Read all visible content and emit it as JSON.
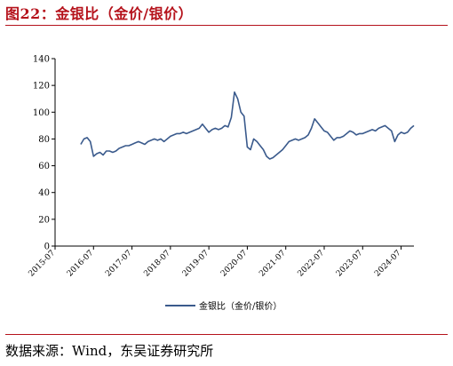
{
  "figure": {
    "title": "图22：金银比（金价/银价）",
    "source": "数据来源：Wind，东吴证券研究所"
  },
  "chart_data": {
    "type": "line",
    "title": "",
    "xlabel": "",
    "ylabel": "",
    "ylim": [
      0,
      140
    ],
    "yticks": [
      0,
      20,
      40,
      60,
      80,
      100,
      120,
      140
    ],
    "x_range": [
      "2015-07",
      "2024-11"
    ],
    "xticks": [
      "2015-07",
      "2016-07",
      "2017-07",
      "2018-07",
      "2019-07",
      "2020-07",
      "2021-07",
      "2022-07",
      "2023-07",
      "2024-07"
    ],
    "grid": false,
    "legend_position": "bottom-center",
    "series": [
      {
        "name": "金银比（金价/银价）",
        "color": "#3a5a8c",
        "x": [
          "2016-03",
          "2016-04",
          "2016-05",
          "2016-06",
          "2016-07",
          "2016-08",
          "2016-09",
          "2016-10",
          "2016-11",
          "2016-12",
          "2017-01",
          "2017-02",
          "2017-03",
          "2017-04",
          "2017-05",
          "2017-06",
          "2017-07",
          "2017-08",
          "2017-09",
          "2017-10",
          "2017-11",
          "2017-12",
          "2018-01",
          "2018-02",
          "2018-03",
          "2018-04",
          "2018-05",
          "2018-06",
          "2018-07",
          "2018-08",
          "2018-09",
          "2018-10",
          "2018-11",
          "2018-12",
          "2019-01",
          "2019-02",
          "2019-03",
          "2019-04",
          "2019-05",
          "2019-06",
          "2019-07",
          "2019-08",
          "2019-09",
          "2019-10",
          "2019-11",
          "2019-12",
          "2020-01",
          "2020-02",
          "2020-03",
          "2020-04",
          "2020-05",
          "2020-06",
          "2020-07",
          "2020-08",
          "2020-09",
          "2020-10",
          "2020-11",
          "2020-12",
          "2021-01",
          "2021-02",
          "2021-03",
          "2021-04",
          "2021-05",
          "2021-06",
          "2021-07",
          "2021-08",
          "2021-09",
          "2021-10",
          "2021-11",
          "2021-12",
          "2022-01",
          "2022-02",
          "2022-03",
          "2022-04",
          "2022-05",
          "2022-06",
          "2022-07",
          "2022-08",
          "2022-09",
          "2022-10",
          "2022-11",
          "2022-12",
          "2023-01",
          "2023-02",
          "2023-03",
          "2023-04",
          "2023-05",
          "2023-06",
          "2023-07",
          "2023-08",
          "2023-09",
          "2023-10",
          "2023-11",
          "2023-12",
          "2024-01",
          "2024-02",
          "2024-03",
          "2024-04",
          "2024-05",
          "2024-06",
          "2024-07",
          "2024-08",
          "2024-09",
          "2024-10",
          "2024-11"
        ],
        "values": [
          76,
          80,
          81,
          78,
          67,
          69,
          70,
          68,
          71,
          71,
          70,
          71,
          73,
          74,
          75,
          75,
          76,
          77,
          78,
          77,
          76,
          78,
          79,
          80,
          79,
          80,
          78,
          80,
          82,
          83,
          84,
          84,
          85,
          84,
          85,
          86,
          87,
          88,
          91,
          88,
          85,
          87,
          88,
          87,
          88,
          90,
          89,
          96,
          115,
          110,
          100,
          97,
          74,
          72,
          80,
          78,
          75,
          72,
          67,
          65,
          66,
          68,
          70,
          72,
          75,
          78,
          79,
          80,
          79,
          80,
          81,
          83,
          88,
          95,
          92,
          89,
          86,
          85,
          82,
          79,
          81,
          81,
          82,
          84,
          86,
          85,
          83,
          84,
          84,
          85,
          86,
          87,
          86,
          88,
          89,
          90,
          88,
          86,
          78,
          83,
          85,
          84,
          85,
          88,
          90
        ]
      }
    ]
  }
}
